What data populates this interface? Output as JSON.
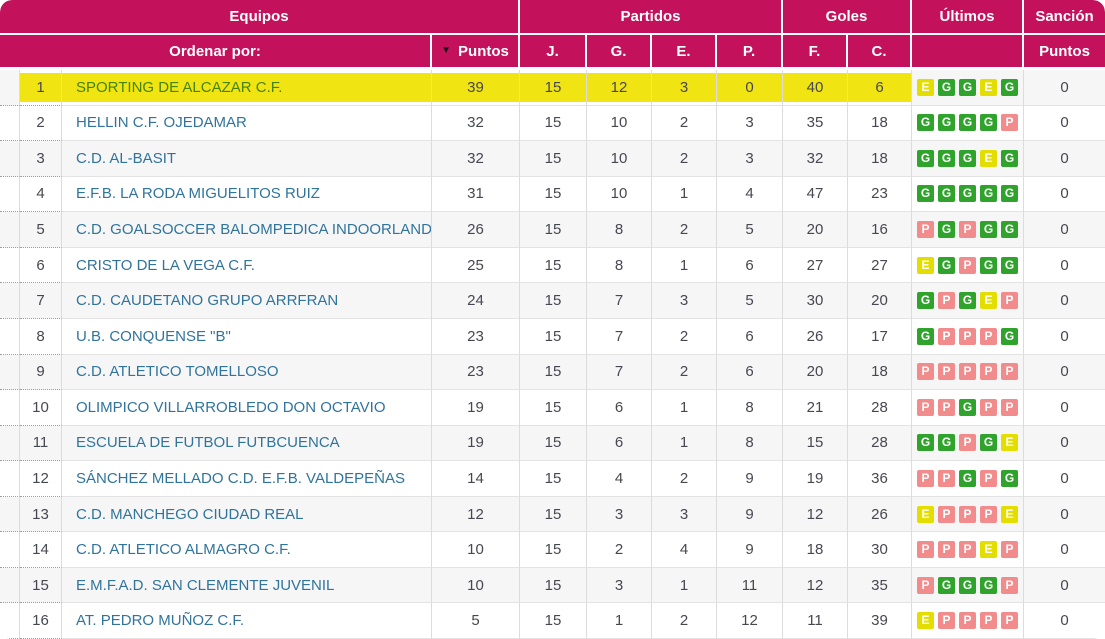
{
  "table": {
    "colors": {
      "header_bg": "#c3115c",
      "highlight": "#f0e412",
      "team_text": "#30749c",
      "highlight_team_text": "#458405",
      "badge_g": "#2fa32c",
      "badge_e": "#e4de00",
      "badge_p": "#f28b8b"
    },
    "header": {
      "equipos": "Equipos",
      "partidos": "Partidos",
      "goles": "Goles",
      "ultimos": "Últimos",
      "sancion": "Sanción",
      "ordenar_por": "Ordenar por:",
      "sort_icon": "▼",
      "puntos": "Puntos",
      "jugados": "J.",
      "ganados": "G.",
      "empatados": "E.",
      "perdidos": "P.",
      "favor": "F.",
      "contra": "C.",
      "sancion_puntos": "Puntos"
    },
    "rows": [
      {
        "pos": 1,
        "team": "SPORTING DE ALCAZAR C.F.",
        "puntos": 39,
        "j": 15,
        "g": 12,
        "e": 3,
        "p": 0,
        "f": 40,
        "c": 6,
        "ultimos": [
          "E",
          "G",
          "G",
          "E",
          "G"
        ],
        "sancion": 0,
        "highlighted": true
      },
      {
        "pos": 2,
        "team": "HELLIN C.F. OJEDAMAR",
        "puntos": 32,
        "j": 15,
        "g": 10,
        "e": 2,
        "p": 3,
        "f": 35,
        "c": 18,
        "ultimos": [
          "G",
          "G",
          "G",
          "G",
          "P"
        ],
        "sancion": 0,
        "highlighted": false
      },
      {
        "pos": 3,
        "team": "C.D. AL-BASIT",
        "puntos": 32,
        "j": 15,
        "g": 10,
        "e": 2,
        "p": 3,
        "f": 32,
        "c": 18,
        "ultimos": [
          "G",
          "G",
          "G",
          "E",
          "G"
        ],
        "sancion": 0,
        "highlighted": false
      },
      {
        "pos": 4,
        "team": "E.F.B. LA RODA MIGUELITOS RUIZ",
        "puntos": 31,
        "j": 15,
        "g": 10,
        "e": 1,
        "p": 4,
        "f": 47,
        "c": 23,
        "ultimos": [
          "G",
          "G",
          "G",
          "G",
          "G"
        ],
        "sancion": 0,
        "highlighted": false
      },
      {
        "pos": 5,
        "team": "C.D. GOALSOCCER BALOMPEDICA INDOORLAND",
        "puntos": 26,
        "j": 15,
        "g": 8,
        "e": 2,
        "p": 5,
        "f": 20,
        "c": 16,
        "ultimos": [
          "P",
          "G",
          "P",
          "G",
          "G"
        ],
        "sancion": 0,
        "highlighted": false
      },
      {
        "pos": 6,
        "team": "CRISTO DE LA VEGA C.F.",
        "puntos": 25,
        "j": 15,
        "g": 8,
        "e": 1,
        "p": 6,
        "f": 27,
        "c": 27,
        "ultimos": [
          "E",
          "G",
          "P",
          "G",
          "G"
        ],
        "sancion": 0,
        "highlighted": false
      },
      {
        "pos": 7,
        "team": "C.D. CAUDETANO GRUPO ARRFRAN",
        "puntos": 24,
        "j": 15,
        "g": 7,
        "e": 3,
        "p": 5,
        "f": 30,
        "c": 20,
        "ultimos": [
          "G",
          "P",
          "G",
          "E",
          "P"
        ],
        "sancion": 0,
        "highlighted": false
      },
      {
        "pos": 8,
        "team": "U.B. CONQUENSE \"B\"",
        "puntos": 23,
        "j": 15,
        "g": 7,
        "e": 2,
        "p": 6,
        "f": 26,
        "c": 17,
        "ultimos": [
          "G",
          "P",
          "P",
          "P",
          "G"
        ],
        "sancion": 0,
        "highlighted": false
      },
      {
        "pos": 9,
        "team": "C.D. ATLETICO TOMELLOSO",
        "puntos": 23,
        "j": 15,
        "g": 7,
        "e": 2,
        "p": 6,
        "f": 20,
        "c": 18,
        "ultimos": [
          "P",
          "P",
          "P",
          "P",
          "P"
        ],
        "sancion": 0,
        "highlighted": false
      },
      {
        "pos": 10,
        "team": "OLIMPICO VILLARROBLEDO DON OCTAVIO",
        "puntos": 19,
        "j": 15,
        "g": 6,
        "e": 1,
        "p": 8,
        "f": 21,
        "c": 28,
        "ultimos": [
          "P",
          "P",
          "G",
          "P",
          "P"
        ],
        "sancion": 0,
        "highlighted": false
      },
      {
        "pos": 11,
        "team": "ESCUELA DE FUTBOL FUTBCUENCA",
        "puntos": 19,
        "j": 15,
        "g": 6,
        "e": 1,
        "p": 8,
        "f": 15,
        "c": 28,
        "ultimos": [
          "G",
          "G",
          "P",
          "G",
          "E"
        ],
        "sancion": 0,
        "highlighted": false
      },
      {
        "pos": 12,
        "team": "SÁNCHEZ MELLADO C.D. E.F.B. VALDEPEÑAS",
        "puntos": 14,
        "j": 15,
        "g": 4,
        "e": 2,
        "p": 9,
        "f": 19,
        "c": 36,
        "ultimos": [
          "P",
          "P",
          "G",
          "P",
          "G"
        ],
        "sancion": 0,
        "highlighted": false
      },
      {
        "pos": 13,
        "team": "C.D. MANCHEGO CIUDAD REAL",
        "puntos": 12,
        "j": 15,
        "g": 3,
        "e": 3,
        "p": 9,
        "f": 12,
        "c": 26,
        "ultimos": [
          "E",
          "P",
          "P",
          "P",
          "E"
        ],
        "sancion": 0,
        "highlighted": false
      },
      {
        "pos": 14,
        "team": "C.D. ATLETICO ALMAGRO C.F.",
        "puntos": 10,
        "j": 15,
        "g": 2,
        "e": 4,
        "p": 9,
        "f": 18,
        "c": 30,
        "ultimos": [
          "P",
          "P",
          "P",
          "E",
          "P"
        ],
        "sancion": 0,
        "highlighted": false
      },
      {
        "pos": 15,
        "team": "E.M.F.A.D. SAN CLEMENTE JUVENIL",
        "puntos": 10,
        "j": 15,
        "g": 3,
        "e": 1,
        "p": 11,
        "f": 12,
        "c": 35,
        "ultimos": [
          "P",
          "G",
          "G",
          "G",
          "P"
        ],
        "sancion": 0,
        "highlighted": false
      },
      {
        "pos": 16,
        "team": "AT. PEDRO MUÑOZ C.F.",
        "puntos": 5,
        "j": 15,
        "g": 1,
        "e": 2,
        "p": 12,
        "f": 11,
        "c": 39,
        "ultimos": [
          "E",
          "P",
          "P",
          "P",
          "P"
        ],
        "sancion": 0,
        "highlighted": false
      }
    ]
  }
}
